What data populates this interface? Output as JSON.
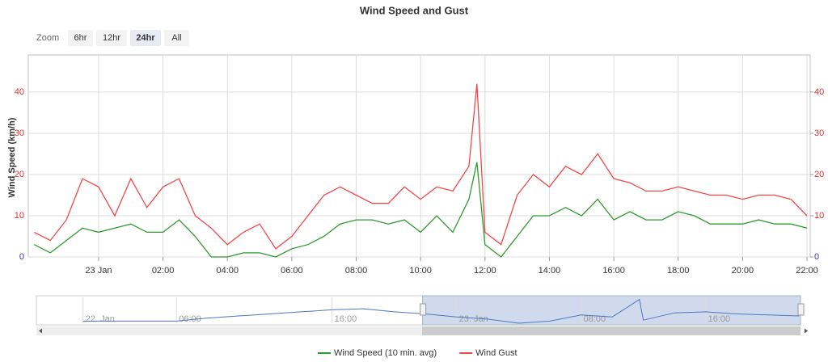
{
  "chart_data": {
    "type": "line",
    "title": "Wind Speed and Gust",
    "y_label": "Wind Speed (km/h)",
    "range_selector": {
      "label": "Zoom",
      "buttons": [
        "6hr",
        "12hr",
        "24hr",
        "All"
      ],
      "selected": 2
    },
    "x": [
      "22 Jan 22:00",
      "22 Jan 22:30",
      "22 Jan 23:00",
      "22 Jan 23:30",
      "23 Jan 00:00",
      "23 Jan 00:30",
      "23 Jan 01:00",
      "23 Jan 01:30",
      "23 Jan 02:00",
      "23 Jan 02:30",
      "23 Jan 03:00",
      "23 Jan 03:30",
      "23 Jan 04:00",
      "23 Jan 04:30",
      "23 Jan 05:00",
      "23 Jan 05:30",
      "23 Jan 06:00",
      "23 Jan 06:30",
      "23 Jan 07:00",
      "23 Jan 07:30",
      "23 Jan 08:00",
      "23 Jan 08:30",
      "23 Jan 09:00",
      "23 Jan 09:30",
      "23 Jan 10:00",
      "23 Jan 10:30",
      "23 Jan 11:00",
      "23 Jan 11:30",
      "23 Jan 11:45",
      "23 Jan 12:00",
      "23 Jan 12:30",
      "23 Jan 13:00",
      "23 Jan 13:30",
      "23 Jan 14:00",
      "23 Jan 14:30",
      "23 Jan 15:00",
      "23 Jan 15:30",
      "23 Jan 16:00",
      "23 Jan 16:30",
      "23 Jan 17:00",
      "23 Jan 17:30",
      "23 Jan 18:00",
      "23 Jan 18:30",
      "23 Jan 19:00",
      "23 Jan 19:30",
      "23 Jan 20:00",
      "23 Jan 20:30",
      "23 Jan 21:00",
      "23 Jan 21:30",
      "23 Jan 22:00"
    ],
    "series": [
      {
        "name": "Wind Speed (10 min. avg)",
        "color": "#2e9a2e",
        "values": [
          3,
          1,
          4,
          7,
          6,
          7,
          8,
          6,
          6,
          9,
          5,
          0,
          0,
          1,
          1,
          0,
          2,
          3,
          5,
          8,
          9,
          9,
          8,
          9,
          6,
          10,
          6,
          14,
          23,
          3,
          0,
          5,
          10,
          10,
          12,
          10,
          14,
          9,
          11,
          9,
          9,
          11,
          10,
          8,
          8,
          8,
          9,
          8,
          8,
          7
        ]
      },
      {
        "name": "Wind Gust",
        "color": "#f04848",
        "values": [
          6,
          4,
          9,
          19,
          17,
          10,
          19,
          12,
          17,
          19,
          10,
          7,
          3,
          6,
          8,
          2,
          5,
          10,
          15,
          17,
          15,
          13,
          13,
          17,
          14,
          17,
          16,
          22,
          42,
          6,
          3,
          15,
          20,
          17,
          22,
          20,
          25,
          19,
          18,
          16,
          16,
          17,
          16,
          15,
          15,
          14,
          15,
          15,
          14,
          10
        ]
      }
    ],
    "xlim": [
      "22 Jan 21:49",
      "23 Jan 22:06"
    ],
    "xticks": [
      {
        "value": "23 Jan 00:00",
        "label": "23 Jan"
      },
      {
        "value": "23 Jan 02:00",
        "label": "02:00"
      },
      {
        "value": "23 Jan 04:00",
        "label": "04:00"
      },
      {
        "value": "23 Jan 06:00",
        "label": "06:00"
      },
      {
        "value": "23 Jan 08:00",
        "label": "08:00"
      },
      {
        "value": "23 Jan 10:00",
        "label": "10:00"
      },
      {
        "value": "23 Jan 12:00",
        "label": "12:00"
      },
      {
        "value": "23 Jan 14:00",
        "label": "14:00"
      },
      {
        "value": "23 Jan 16:00",
        "label": "16:00"
      },
      {
        "value": "23 Jan 18:00",
        "label": "18:00"
      },
      {
        "value": "23 Jan 20:00",
        "label": "20:00"
      },
      {
        "value": "23 Jan 22:00",
        "label": "22:00"
      }
    ],
    "ylim": [
      0,
      49
    ],
    "yticks": [
      0,
      10,
      20,
      30,
      40
    ],
    "y2lim": [
      0,
      49
    ],
    "y2ticks": [
      0,
      10,
      20,
      30,
      40
    ],
    "tick_color": "#e03030",
    "zero_tick_color": "#3333cc",
    "grid": true,
    "legend": "bottom",
    "navigator": {
      "color": "#4a78c2",
      "x": [
        "22 Jan 00:00",
        "22 Jan 02:00",
        "22 Jan 04:00",
        "22 Jan 06:00",
        "22 Jan 08:00",
        "22 Jan 10:00",
        "22 Jan 12:00",
        "22 Jan 14:00",
        "22 Jan 16:00",
        "22 Jan 18:00",
        "22 Jan 20:00",
        "22 Jan 22:00",
        "23 Jan 00:00",
        "23 Jan 02:00",
        "23 Jan 04:00",
        "23 Jan 06:00",
        "23 Jan 08:00",
        "23 Jan 10:00",
        "23 Jan 11:45",
        "23 Jan 12:00",
        "23 Jan 14:00",
        "23 Jan 16:00",
        "23 Jan 18:00",
        "23 Jan 20:00",
        "23 Jan 22:00"
      ],
      "values": [
        2,
        2,
        2,
        2,
        5,
        7,
        9,
        11,
        13,
        14,
        11,
        9,
        6,
        4,
        0,
        2,
        8,
        6,
        23,
        3,
        10,
        11,
        9,
        8,
        7
      ],
      "xlim": [
        "21 Jan 21:00",
        "23 Jan 22:06"
      ],
      "ylim": [
        0,
        25
      ],
      "selection": [
        "22 Jan 21:49",
        "23 Jan 22:06"
      ],
      "xticks": [
        {
          "value": "22 Jan 00:00",
          "label": "22. Jan"
        },
        {
          "value": "22 Jan 06:00",
          "label": "06:00"
        },
        {
          "value": "22 Jan 16:00",
          "label": "16:00"
        },
        {
          "value": "23 Jan 00:00",
          "label": "23. Jan"
        },
        {
          "value": "23 Jan 08:00",
          "label": "08:00"
        },
        {
          "value": "23 Jan 16:00",
          "label": "16:00"
        }
      ]
    }
  }
}
